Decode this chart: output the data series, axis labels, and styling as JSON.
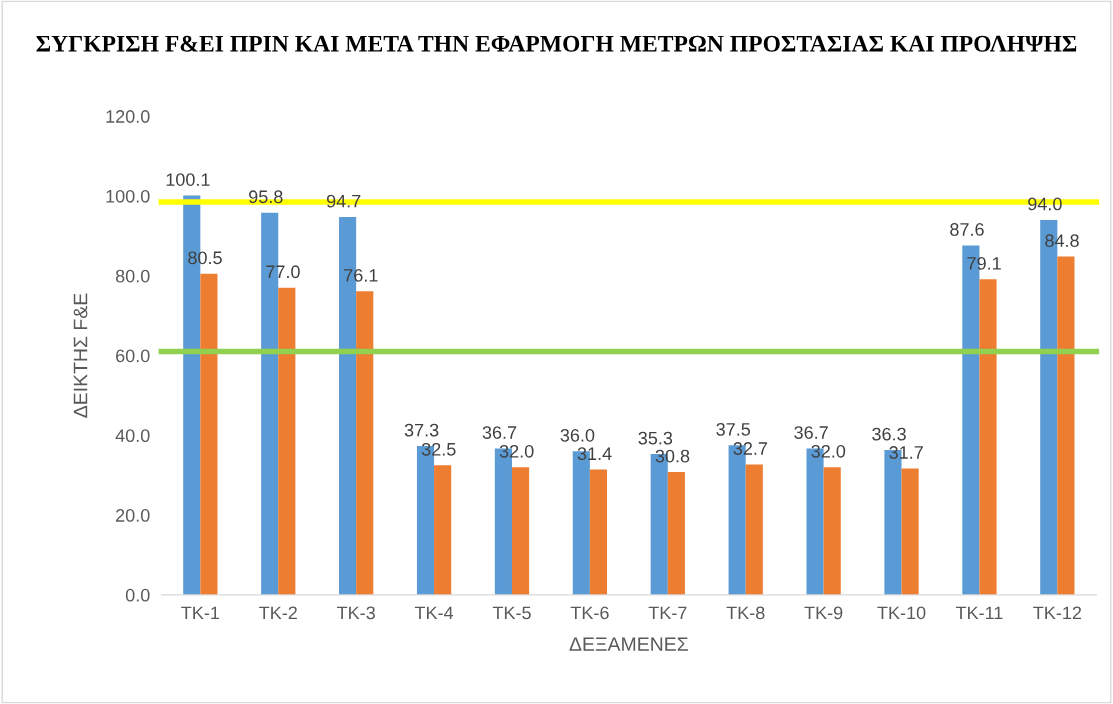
{
  "chart_data": {
    "type": "bar",
    "title": "ΣΥΓΚΡΙΣΗ F&EI ΠΡΙΝ ΚΑΙ ΜΕΤΑ ΤΗΝ ΕΦΑΡΜΟΓΗ ΜΕΤΡΩΝ ΠΡΟΣΤΑΣΙΑΣ ΚΑΙ ΠΡΟΛΗΨΗΣ",
    "xlabel": "ΔΕΞΑΜΕΝΕΣ",
    "ylabel": "ΔΕΙΚΤΗΣ F&E",
    "categories": [
      "ΤΚ-1",
      "ΤΚ-2",
      "ΤΚ-3",
      "ΤΚ-4",
      "ΤΚ-5",
      "ΤΚ-6",
      "ΤΚ-7",
      "ΤΚ-8",
      "ΤΚ-9",
      "ΤΚ-10",
      "ΤΚ-11",
      "ΤΚ-12"
    ],
    "series": [
      {
        "color": "#5b9bd5",
        "values": [
          100.1,
          95.8,
          94.7,
          37.3,
          36.7,
          36.0,
          35.3,
          37.5,
          36.7,
          36.3,
          87.6,
          94.0
        ],
        "value_labels": [
          "100.1",
          "95.8",
          "94.7",
          "37.3",
          "36.7",
          "36.0",
          "35.3",
          "37.5",
          "36.7",
          "36.3",
          "87.6",
          "94.0"
        ]
      },
      {
        "color": "#ed7d31",
        "values": [
          80.5,
          77.0,
          76.1,
          32.5,
          32.0,
          31.4,
          30.8,
          32.7,
          32.0,
          31.7,
          79.1,
          84.8
        ],
        "value_labels": [
          "80.5",
          "77.0",
          "76.1",
          "32.5",
          "32.0",
          "31.4",
          "30.8",
          "32.7",
          "32.0",
          "31.7",
          "79.1",
          "84.8"
        ]
      }
    ],
    "ylim": [
      0,
      120
    ],
    "yticks": [
      {
        "value": 0,
        "label": "0.0"
      },
      {
        "value": 20,
        "label": "20.0"
      },
      {
        "value": 40,
        "label": "40.0"
      },
      {
        "value": 60,
        "label": "60.0"
      },
      {
        "value": 80,
        "label": "80.0"
      },
      {
        "value": 100,
        "label": "100.0"
      },
      {
        "value": 120,
        "label": "120.0"
      }
    ],
    "ref_lines": [
      {
        "axis": "y",
        "value": 98.5,
        "color": "#ffff00"
      },
      {
        "axis": "y",
        "value": 61,
        "color": "#92d050"
      }
    ],
    "grid": false,
    "legend": false
  }
}
